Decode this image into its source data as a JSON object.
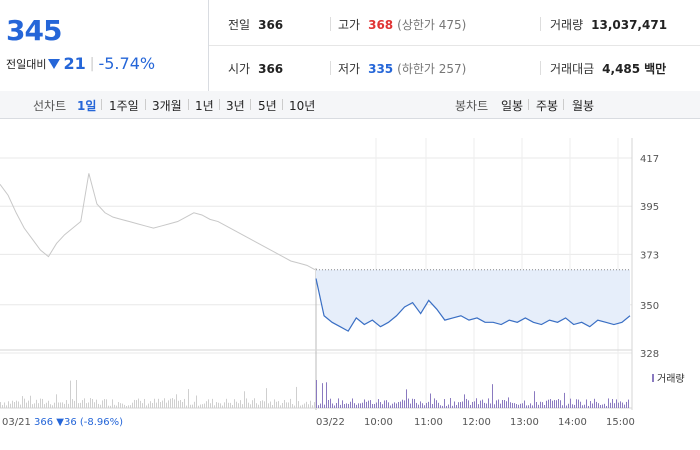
{
  "quote": {
    "current_price": "345",
    "change_label": "전일대비",
    "change_amount": "21",
    "change_percent": "-5.74%",
    "prev_close_label": "전일",
    "prev_close": "366",
    "open_label": "시가",
    "open": "366",
    "high_label": "고가",
    "high": "368",
    "upper_limit": "(상한가 475)",
    "low_label": "저가",
    "low": "335",
    "lower_limit": "(하한가 257)",
    "volume_label": "거래량",
    "volume": "13,037,471",
    "amount_label": "거래대금",
    "amount": "4,485",
    "amount_unit": "백만"
  },
  "tabs": {
    "line_label": "선차트",
    "line_periods": [
      "1일",
      "1주일",
      "3개월",
      "1년",
      "3년",
      "5년",
      "10년"
    ],
    "selected_period": "1일",
    "candle_label": "봉차트",
    "candle_periods": [
      "일봉",
      "주봉",
      "월봉"
    ]
  },
  "colors": {
    "up": "#e03434",
    "down": "#2566d8",
    "prev_day_line": "#c8c8c8",
    "today_line": "#3a6fc4",
    "today_fill": "#e6eefa"
  },
  "chart_data": {
    "type": "line",
    "y_ticks": [
      "417",
      "395",
      "373",
      "350",
      "328"
    ],
    "ylim": [
      328,
      417
    ],
    "prev_close_reference": 366,
    "x_labels": [
      "03/21",
      "03/22",
      "10:00",
      "11:00",
      "12:00",
      "13:00",
      "14:00",
      "15:00"
    ],
    "prev_day_summary": "366 ▼36 (-8.96%)",
    "volume_legend": "거래량",
    "series": [
      {
        "period": "03/21",
        "values": [
          405,
          400,
          392,
          385,
          380,
          375,
          372,
          378,
          382,
          385,
          388,
          410,
          396,
          392,
          390,
          389,
          388,
          387,
          386,
          385,
          386,
          387,
          388,
          390,
          392,
          391,
          389,
          388,
          386,
          384,
          382,
          380,
          378,
          376,
          374,
          372,
          370,
          369,
          368,
          366
        ]
      },
      {
        "period": "03/22",
        "values": [
          362,
          345,
          342,
          340,
          338,
          344,
          341,
          343,
          340,
          342,
          345,
          349,
          351,
          346,
          352,
          348,
          343,
          344,
          345,
          343,
          344,
          342,
          342,
          341,
          343,
          342,
          344,
          342,
          341,
          343,
          342,
          344,
          341,
          342,
          340,
          343,
          342,
          341,
          342,
          345
        ]
      }
    ]
  }
}
